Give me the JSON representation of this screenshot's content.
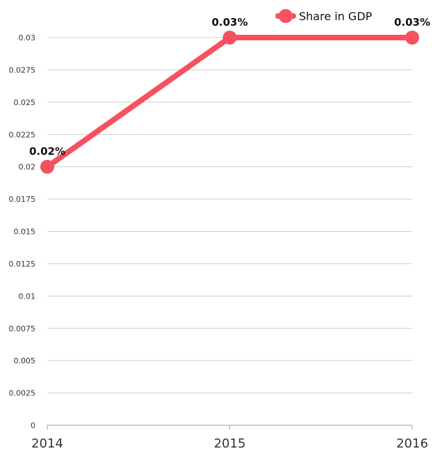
{
  "chart_data": {
    "type": "line",
    "x": [
      "2014",
      "2015",
      "2016"
    ],
    "series": [
      {
        "name": "Share in GDP",
        "values": [
          0.02,
          0.03,
          0.03
        ],
        "data_labels": [
          "0.02%",
          "0.03%",
          "0.03%"
        ],
        "color": "#f5515f"
      }
    ],
    "y_ticks": [
      "0",
      "0.0025",
      "0.005",
      "0.0075",
      "0.01",
      "0.0125",
      "0.015",
      "0.0175",
      "0.02",
      "0.0225",
      "0.025",
      "0.0275",
      "0.03"
    ],
    "ylim": [
      0,
      0.03
    ],
    "grid": true,
    "legend": {
      "position": "top-right",
      "entries": [
        "Share in GDP"
      ]
    },
    "xlabel": "",
    "ylabel": "",
    "title": ""
  }
}
